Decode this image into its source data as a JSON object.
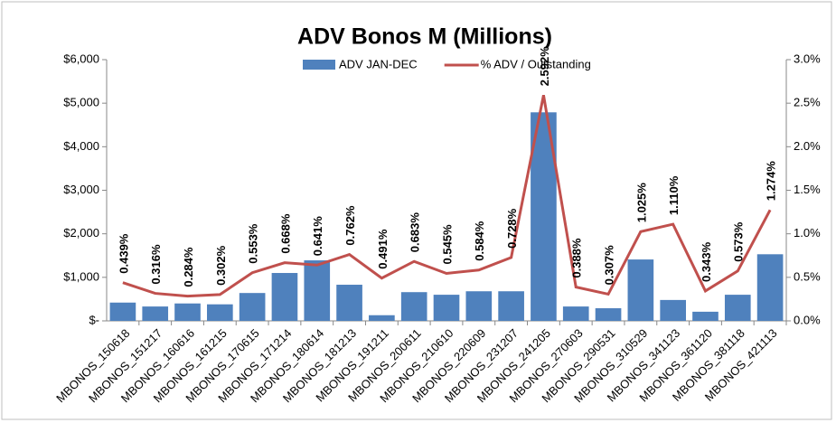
{
  "chart_data": {
    "type": "combo",
    "title": "ADV Bonos M (Millions)",
    "categories": [
      "MBONOS_150618",
      "MBONOS_151217",
      "MBONOS_160616",
      "MBONOS_161215",
      "MBONOS_170615",
      "MBONOS_171214",
      "MBONOS_180614",
      "MBONOS_181213",
      "MBONOS_191211",
      "MBONOS_200611",
      "MBONOS_210610",
      "MBONOS_220609",
      "MBONOS_231207",
      "MBONOS_241205",
      "MBONOS_270603",
      "MBONOS_290531",
      "MBONOS_310529",
      "MBONOS_341123",
      "MBONOS_361120",
      "MBONOS_381118",
      "MBONOS_421113"
    ],
    "series": [
      {
        "name": "ADV JAN-DEC",
        "type": "bar",
        "color": "#4f81bd",
        "values": [
          420,
          330,
          400,
          380,
          640,
          1100,
          1390,
          830,
          130,
          660,
          600,
          680,
          680,
          4790,
          330,
          290,
          1410,
          480,
          210,
          600,
          1530
        ]
      },
      {
        "name": "% ADV / Outstanding",
        "type": "line",
        "axis": "y2",
        "color": "#c0504d",
        "values": [
          0.439,
          0.316,
          0.284,
          0.302,
          0.553,
          0.668,
          0.641,
          0.762,
          0.491,
          0.683,
          0.545,
          0.584,
          0.728,
          2.592,
          0.388,
          0.307,
          1.025,
          1.11,
          0.343,
          0.573,
          1.274
        ],
        "value_labels": [
          "0.439%",
          "0.316%",
          "0.284%",
          "0.302%",
          "0.553%",
          "0.668%",
          "0.641%",
          "0.762%",
          "0.491%",
          "0.683%",
          "0.545%",
          "0.584%",
          "0.728%",
          "2.592%",
          "0.388%",
          "0.307%",
          "1.025%",
          "1.110%",
          "0.343%",
          "0.573%",
          "1.274%"
        ]
      }
    ],
    "ylim": [
      0,
      6000
    ],
    "yticks": [
      {
        "value": 0,
        "label": "$-"
      },
      {
        "value": 1000,
        "label": "$1,000"
      },
      {
        "value": 2000,
        "label": "$2,000"
      },
      {
        "value": 3000,
        "label": "$3,000"
      },
      {
        "value": 4000,
        "label": "$4,000"
      },
      {
        "value": 5000,
        "label": "$5,000"
      },
      {
        "value": 6000,
        "label": "$6,000"
      }
    ],
    "y2lim": [
      0,
      3
    ],
    "y2ticks": [
      {
        "value": 0,
        "label": "0.0%"
      },
      {
        "value": 0.5,
        "label": "0.5%"
      },
      {
        "value": 1,
        "label": "1.0%"
      },
      {
        "value": 1.5,
        "label": "1.5%"
      },
      {
        "value": 2,
        "label": "2.0%"
      },
      {
        "value": 2.5,
        "label": "2.5%"
      },
      {
        "value": 3,
        "label": "3.0%"
      }
    ],
    "grid": false,
    "legend": "top"
  }
}
